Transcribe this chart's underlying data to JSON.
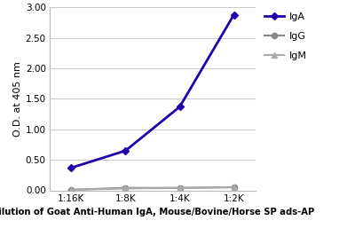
{
  "x_labels": [
    "1:16K",
    "1:8K",
    "1:4K",
    "1:2K"
  ],
  "x_values": [
    1,
    2,
    3,
    4
  ],
  "IgA_values": [
    0.37,
    0.65,
    1.37,
    2.88
  ],
  "IgG_values": [
    0.01,
    0.04,
    0.04,
    0.05
  ],
  "IgM_values": [
    0.01,
    0.03,
    0.04,
    0.05
  ],
  "IgA_color": "#2200aa",
  "IgG_color": "#888888",
  "IgM_color": "#aaaaaa",
  "ylabel": "O.D. at 405 nm",
  "xlabel": "Dilution of Goat Anti-Human IgA, Mouse/Bovine/Horse SP ads-AP",
  "ylim": [
    0.0,
    3.0
  ],
  "yticks": [
    0.0,
    0.5,
    1.0,
    1.5,
    2.0,
    2.5,
    3.0
  ],
  "background_color": "#ffffff",
  "grid_color": "#cccccc",
  "legend_labels": [
    "IgA",
    "IgG",
    "IgM"
  ]
}
